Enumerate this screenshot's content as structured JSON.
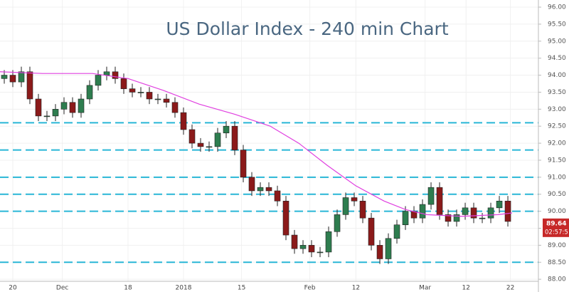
{
  "chart_data": {
    "type": "candlestick",
    "title": "US Dollar Index - 240 min Chart",
    "x": [
      0.5,
      1.5,
      2.5,
      3.5,
      4.5,
      5.5,
      6.5,
      7.5,
      8.5,
      9.5,
      10.5,
      11.5,
      12.5,
      13.5,
      14.5,
      15.5,
      16.5,
      17.5,
      18.5,
      19.5,
      20.5,
      21.5,
      22.5,
      23.5,
      24.5,
      25.5,
      26.5,
      27.5,
      28.5,
      29.5,
      30.5,
      31.5,
      32.5,
      33.5,
      34.5,
      35.5,
      36.5,
      37.5,
      38.5,
      39.5,
      40.5,
      41.5,
      42.5,
      43.5,
      44.5,
      45.5,
      46.5,
      47.5,
      48.5,
      49.5,
      50.5,
      51.5,
      52.5,
      53.5,
      54.5,
      55.5,
      56.5,
      57.5,
      58.5,
      59.5
    ],
    "open": [
      93.9,
      94.0,
      93.8,
      94.1,
      93.3,
      92.8,
      92.8,
      93.0,
      93.2,
      92.9,
      93.3,
      93.7,
      94.0,
      94.1,
      93.9,
      93.6,
      93.5,
      93.5,
      93.3,
      93.3,
      93.2,
      92.9,
      92.4,
      92.0,
      91.9,
      91.9,
      92.3,
      92.5,
      91.8,
      91.0,
      90.6,
      90.7,
      90.6,
      90.3,
      89.3,
      88.9,
      89.0,
      88.8,
      88.8,
      89.4,
      89.9,
      90.4,
      90.3,
      89.8,
      89.0,
      88.6,
      89.2,
      89.6,
      90.0,
      89.8,
      90.2,
      90.7,
      89.9,
      89.7,
      89.9,
      90.1,
      89.8,
      89.8,
      90.1,
      90.3
    ],
    "high": [
      94.15,
      94.15,
      94.25,
      94.25,
      93.45,
      92.95,
      93.15,
      93.35,
      93.35,
      93.45,
      93.85,
      94.15,
      94.25,
      94.25,
      94.05,
      93.75,
      93.65,
      93.65,
      93.45,
      93.45,
      93.35,
      93.05,
      92.55,
      92.15,
      92.05,
      92.45,
      92.65,
      92.65,
      91.95,
      91.15,
      90.85,
      90.85,
      90.75,
      90.45,
      89.45,
      89.15,
      89.15,
      88.95,
      89.55,
      90.05,
      90.55,
      90.55,
      90.45,
      89.95,
      89.15,
      89.35,
      89.75,
      90.15,
      90.15,
      90.35,
      90.85,
      90.85,
      90.05,
      90.05,
      90.25,
      90.25,
      89.95,
      90.25,
      90.45,
      90.45
    ],
    "low": [
      93.75,
      93.65,
      93.65,
      93.15,
      92.65,
      92.65,
      92.65,
      92.85,
      92.75,
      92.75,
      93.15,
      93.55,
      93.85,
      93.75,
      93.45,
      93.35,
      93.35,
      93.15,
      93.15,
      93.05,
      92.75,
      92.25,
      91.85,
      91.75,
      91.75,
      91.75,
      92.15,
      91.65,
      90.85,
      90.45,
      90.45,
      90.45,
      90.15,
      89.15,
      88.75,
      88.75,
      88.65,
      88.65,
      88.65,
      89.25,
      89.75,
      90.15,
      89.65,
      88.85,
      88.45,
      88.45,
      89.05,
      89.45,
      89.65,
      89.65,
      90.05,
      89.75,
      89.55,
      89.55,
      89.75,
      89.65,
      89.65,
      89.65,
      89.95,
      89.55
    ],
    "close": [
      94.0,
      93.8,
      94.1,
      93.3,
      92.8,
      92.8,
      93.0,
      93.2,
      92.9,
      93.3,
      93.7,
      94.0,
      94.1,
      93.9,
      93.6,
      93.5,
      93.5,
      93.3,
      93.3,
      93.2,
      92.9,
      92.4,
      92.0,
      91.9,
      91.9,
      92.3,
      92.5,
      91.8,
      91.0,
      90.6,
      90.7,
      90.6,
      90.3,
      89.3,
      88.9,
      89.0,
      88.8,
      88.8,
      89.4,
      89.9,
      90.4,
      90.3,
      89.8,
      89.0,
      88.6,
      89.2,
      89.6,
      90.0,
      89.8,
      90.2,
      90.7,
      89.9,
      89.7,
      89.9,
      90.1,
      89.8,
      89.8,
      90.1,
      90.3,
      89.7
    ],
    "up_color": "#2e7d4f",
    "down_color": "#8b1a1a",
    "moving_average": {
      "color": "#e040e0",
      "x": [
        0,
        5,
        10.83,
        15,
        19.17,
        23.33,
        27.5,
        31.67,
        35,
        38.33,
        41.67,
        45,
        47.5,
        50,
        54.17,
        58.33,
        60
      ],
      "values": [
        94.1,
        94.05,
        94.05,
        93.9,
        93.55,
        93.15,
        92.85,
        92.5,
        92.0,
        91.35,
        90.75,
        90.3,
        90.05,
        89.9,
        89.85,
        89.9,
        89.95
      ]
    },
    "levels": [
      92.6,
      91.8,
      91.0,
      90.5,
      90.0,
      88.5
    ],
    "level_color": "#29b6d6",
    "last_price": {
      "value": 89.64,
      "countdown": "02:57:5",
      "color": "#c62828"
    },
    "xlim": [
      0,
      63.08
    ],
    "ylim": [
      87.94,
      96.21
    ],
    "xticks": [
      {
        "value": 1.5,
        "label": "20"
      },
      {
        "value": 7.3,
        "label": "Dec"
      },
      {
        "value": 15,
        "label": "18"
      },
      {
        "value": 21.5,
        "label": "2018"
      },
      {
        "value": 28.3,
        "label": "15"
      },
      {
        "value": 36.3,
        "label": "Feb"
      },
      {
        "value": 41.7,
        "label": "12"
      },
      {
        "value": 49.8,
        "label": "Mar"
      },
      {
        "value": 54.6,
        "label": "12"
      },
      {
        "value": 59.8,
        "label": "22"
      }
    ],
    "yticks": [
      {
        "value": 88,
        "label": "88.00"
      },
      {
        "value": 88.5,
        "label": "88.50"
      },
      {
        "value": 89,
        "label": "89.00"
      },
      {
        "value": 89.5,
        "label": "89.50"
      },
      {
        "value": 90,
        "label": "90.00"
      },
      {
        "value": 90.5,
        "label": "90.50"
      },
      {
        "value": 91,
        "label": "91.00"
      },
      {
        "value": 91.5,
        "label": "91.50"
      },
      {
        "value": 92,
        "label": "92.00"
      },
      {
        "value": 92.5,
        "label": "92.50"
      },
      {
        "value": 93,
        "label": "93.00"
      },
      {
        "value": 93.5,
        "label": "93.50"
      },
      {
        "value": 94,
        "label": "94.00"
      },
      {
        "value": 94.5,
        "label": "94.50"
      },
      {
        "value": 95,
        "label": "95.00"
      },
      {
        "value": 95.5,
        "label": "95.50"
      },
      {
        "value": 96,
        "label": "96.00"
      }
    ],
    "grid": true
  }
}
